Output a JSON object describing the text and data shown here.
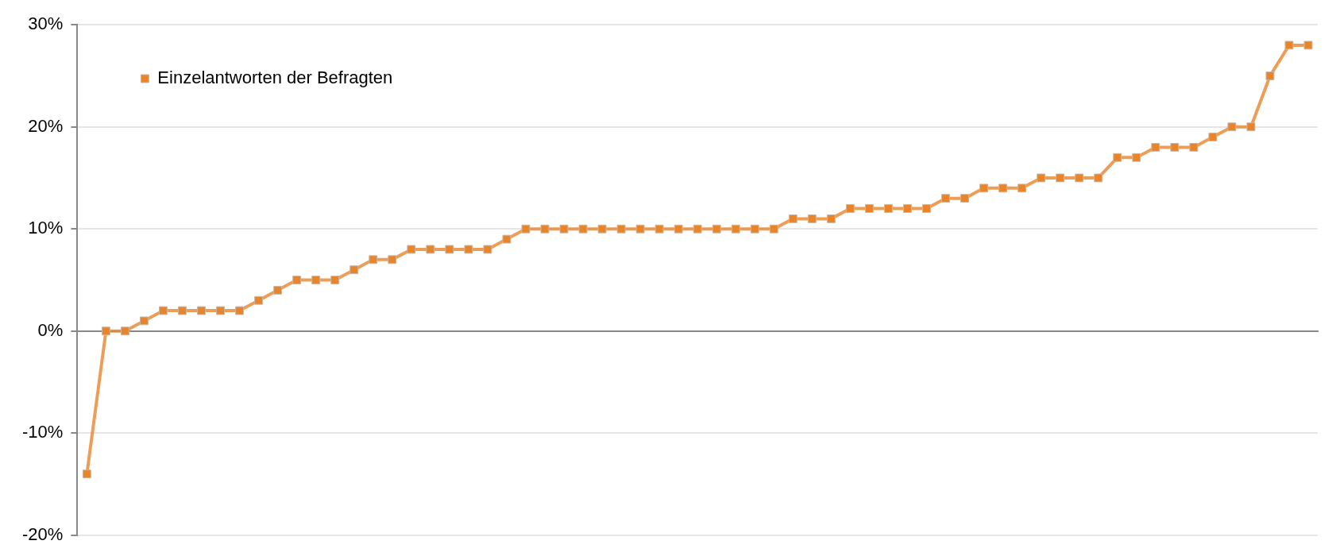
{
  "chart_data": {
    "type": "line",
    "categories": [
      null,
      null,
      null,
      null,
      null,
      null,
      null,
      null,
      null,
      null,
      null,
      null,
      null,
      null,
      null,
      null,
      null,
      null,
      null,
      null,
      null,
      null,
      null,
      null,
      null,
      null,
      null,
      null,
      null,
      null,
      null,
      null,
      null,
      null,
      null,
      null,
      null,
      null,
      null,
      null,
      null,
      null,
      null,
      null,
      null,
      null,
      null,
      null,
      null,
      null,
      null,
      null,
      null,
      null,
      null,
      null,
      null,
      null,
      null,
      null,
      null,
      null,
      null,
      null,
      null
    ],
    "series": [
      {
        "name": "Einzelantworten der Befragten",
        "color": "#e8842a",
        "values": [
          -14,
          0,
          0,
          1,
          2,
          2,
          2,
          2,
          2,
          3,
          4,
          5,
          5,
          5,
          6,
          7,
          7,
          8,
          8,
          8,
          8,
          8,
          9,
          10,
          10,
          10,
          10,
          10,
          10,
          10,
          10,
          10,
          10,
          10,
          10,
          10,
          10,
          11,
          11,
          11,
          12,
          12,
          12,
          12,
          12,
          13,
          13,
          14,
          14,
          14,
          15,
          15,
          15,
          15,
          17,
          17,
          18,
          18,
          18,
          19,
          20,
          20,
          25,
          28,
          28
        ]
      }
    ],
    "ylim": [
      -20,
      30
    ],
    "yticks": [
      {
        "value": -20,
        "label": "-20%"
      },
      {
        "value": -10,
        "label": "-10%"
      },
      {
        "value": 0,
        "label": "0%"
      },
      {
        "value": 10,
        "label": "10%"
      },
      {
        "value": 20,
        "label": "20%"
      },
      {
        "value": 30,
        "label": "30%"
      }
    ],
    "grid": "y",
    "legend": "top left",
    "marker": "square",
    "line_style": "solid",
    "tick_labels": "y"
  }
}
